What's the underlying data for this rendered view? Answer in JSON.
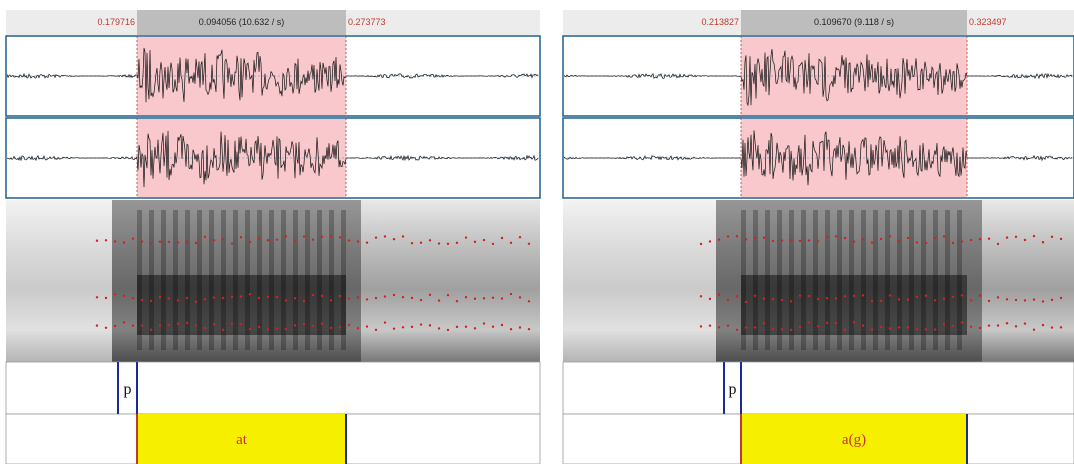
{
  "panels": [
    {
      "selection": {
        "start": "0.179716",
        "duration": "0.094056 (10.632 / s)",
        "end": "0.273773"
      },
      "tiers": [
        {
          "label": "p"
        },
        {
          "label": "at"
        }
      ]
    },
    {
      "selection": {
        "start": "0.213827",
        "duration": "0.109670 (9.118 / s)",
        "end": "0.323497"
      },
      "tiers": [
        {
          "label": "p"
        },
        {
          "label": "a(g)"
        }
      ]
    }
  ]
}
